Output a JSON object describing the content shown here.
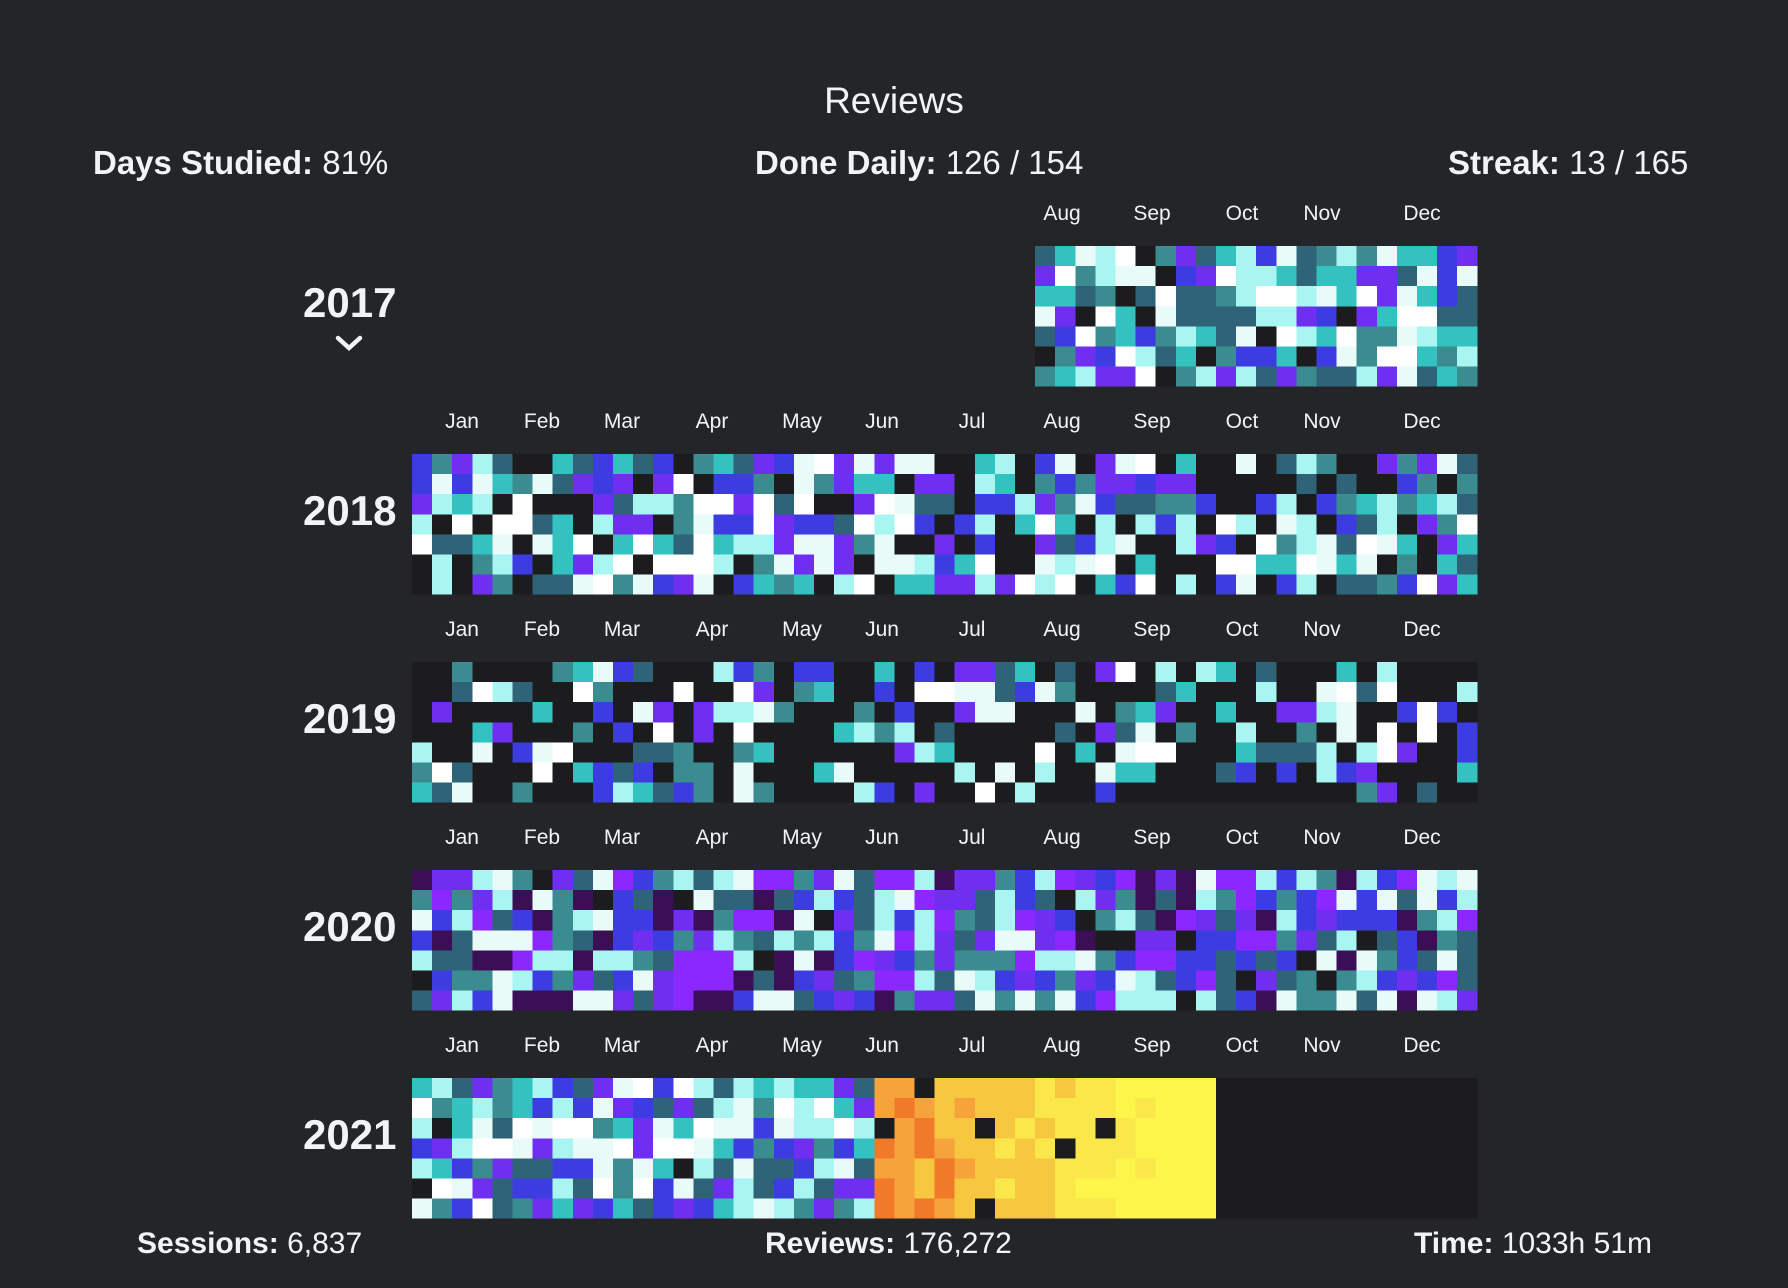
{
  "title": "Reviews",
  "stats": {
    "days_studied": {
      "label": "Days Studied:",
      "value": "81%"
    },
    "done_daily": {
      "label": "Done Daily:",
      "value": "126 / 154"
    },
    "streak": {
      "label": "Streak:",
      "value": "13 / 165"
    }
  },
  "footer": {
    "sessions": {
      "label": "Sessions:",
      "value": "6,837"
    },
    "reviews": {
      "label": "Reviews:",
      "value": "176,272"
    },
    "time": {
      "label": "Time:",
      "value": "1033h 51m"
    }
  },
  "colors": {
    "background": "#232528",
    "empty_cell": "#1c1c1e",
    "levels": [
      "#1c1c1e",
      "#3b0f55",
      "#2f6378",
      "#3b8c91",
      "#34c2c0",
      "#a8f5f2",
      "#e9fbf9",
      "#ffffff",
      "#3c3ce0",
      "#6f2ff0",
      "#8a28ff"
    ],
    "heat_levels": [
      "#f07a2a",
      "#f5a33a",
      "#f8c740",
      "#fae84a",
      "#fdf54a"
    ]
  },
  "years": [
    {
      "year": "2017",
      "months": [
        "Aug",
        "Sep",
        "Oct",
        "Nov",
        "Dec"
      ],
      "collapsed_toggle": true,
      "palette": "cool",
      "seed": 17,
      "start_week": 31,
      "density": 0.93
    },
    {
      "year": "2018",
      "months": [
        "Jan",
        "Feb",
        "Mar",
        "Apr",
        "May",
        "Jun",
        "Jul",
        "Aug",
        "Sep",
        "Oct",
        "Nov",
        "Dec"
      ],
      "palette": "cool",
      "seed": 18,
      "start_week": 0,
      "density": 0.8
    },
    {
      "year": "2019",
      "months": [
        "Jan",
        "Feb",
        "Mar",
        "Apr",
        "May",
        "Jun",
        "Jul",
        "Aug",
        "Sep",
        "Oct",
        "Nov",
        "Dec"
      ],
      "palette": "cool",
      "seed": 19,
      "start_week": 0,
      "density": 0.5
    },
    {
      "year": "2020",
      "months": [
        "Jan",
        "Feb",
        "Mar",
        "Apr",
        "May",
        "Jun",
        "Jul",
        "Aug",
        "Sep",
        "Oct",
        "Nov",
        "Dec"
      ],
      "palette": "purple",
      "seed": 20,
      "start_week": 0,
      "density": 0.97
    },
    {
      "year": "2021",
      "months": [
        "Jan",
        "Feb",
        "Mar",
        "Apr",
        "May",
        "Jun",
        "Jul",
        "Aug",
        "Sep",
        "Oct",
        "Nov",
        "Dec"
      ],
      "palette": "mixed",
      "seed": 21,
      "start_week": 0,
      "density": 0.98,
      "studied_through_week": 40
    }
  ]
}
